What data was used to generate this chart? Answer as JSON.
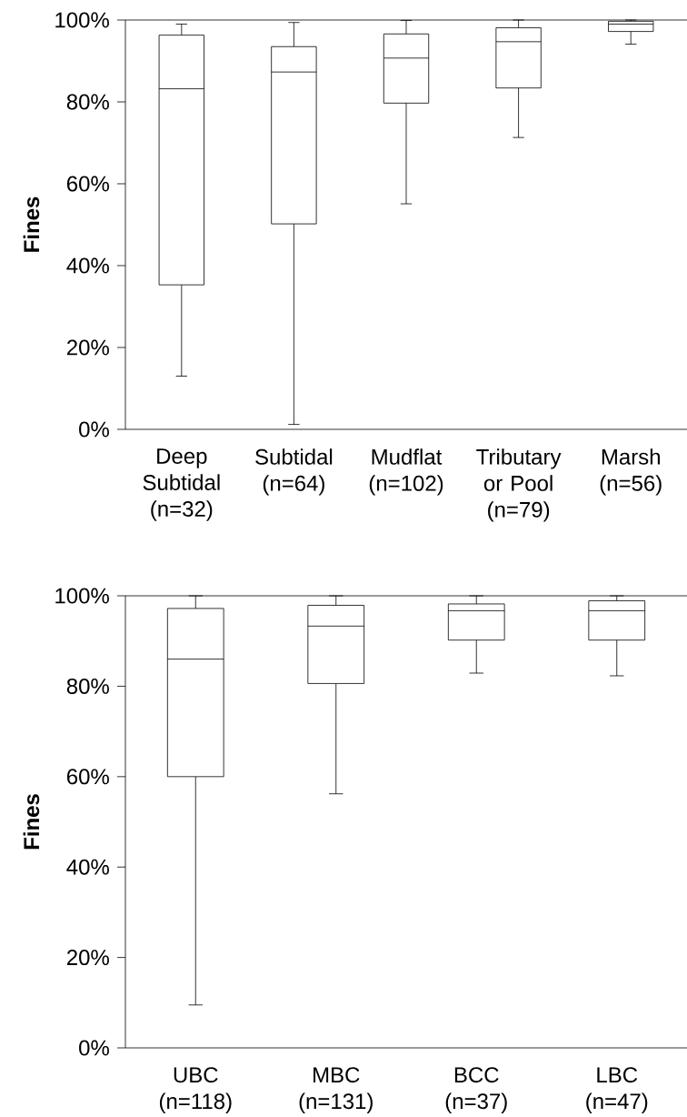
{
  "chart_data": [
    {
      "type": "box",
      "ylabel": "Fines",
      "categories": [
        "Deep Subtidal (n=32)",
        "Subtidal (n=64)",
        "Mudflat (n=102)",
        "Tributary or Pool (n=79)",
        "Marsh (n=56)"
      ],
      "boxes": [
        {
          "low": 13.0,
          "q1": 35.3,
          "median": 83.2,
          "q3": 96.3,
          "high": 99.0
        },
        {
          "low": 1.2,
          "q1": 50.2,
          "median": 87.3,
          "q3": 93.5,
          "high": 99.4
        },
        {
          "low": 55.1,
          "q1": 79.7,
          "median": 90.7,
          "q3": 96.6,
          "high": 99.9
        },
        {
          "low": 71.3,
          "q1": 83.4,
          "median": 94.7,
          "q3": 98.1,
          "high": 100
        },
        {
          "low": 94.1,
          "q1": 97.2,
          "median": 99.0,
          "q3": 99.7,
          "high": 100
        }
      ],
      "ylim": [
        0,
        100
      ],
      "yticks": [
        {
          "value": 0,
          "label": "0%"
        },
        {
          "value": 20,
          "label": "20%"
        },
        {
          "value": 40,
          "label": "40%"
        },
        {
          "value": 60,
          "label": "60%"
        },
        {
          "value": 80,
          "label": "80%"
        },
        {
          "value": 100,
          "label": "100%"
        }
      ]
    },
    {
      "type": "box",
      "ylabel": "Fines",
      "categories": [
        "UBC (n=118)",
        "MBC (n=131)",
        "BCC (n=37)",
        "LBC (n=47)"
      ],
      "boxes": [
        {
          "low": 9.5,
          "q1": 60.0,
          "median": 86.0,
          "q3": 97.2,
          "high": 100
        },
        {
          "low": 56.2,
          "q1": 80.6,
          "median": 93.3,
          "q3": 97.9,
          "high": 100
        },
        {
          "low": 82.9,
          "q1": 90.2,
          "median": 96.7,
          "q3": 98.2,
          "high": 100
        },
        {
          "low": 82.3,
          "q1": 90.2,
          "median": 96.7,
          "q3": 98.9,
          "high": 100
        }
      ],
      "ylim": [
        0,
        100
      ],
      "yticks": [
        {
          "value": 0,
          "label": "0%"
        },
        {
          "value": 20,
          "label": "20%"
        },
        {
          "value": 40,
          "label": "40%"
        },
        {
          "value": 60,
          "label": "60%"
        },
        {
          "value": 80,
          "label": "80%"
        },
        {
          "value": 100,
          "label": "100%"
        }
      ]
    }
  ]
}
